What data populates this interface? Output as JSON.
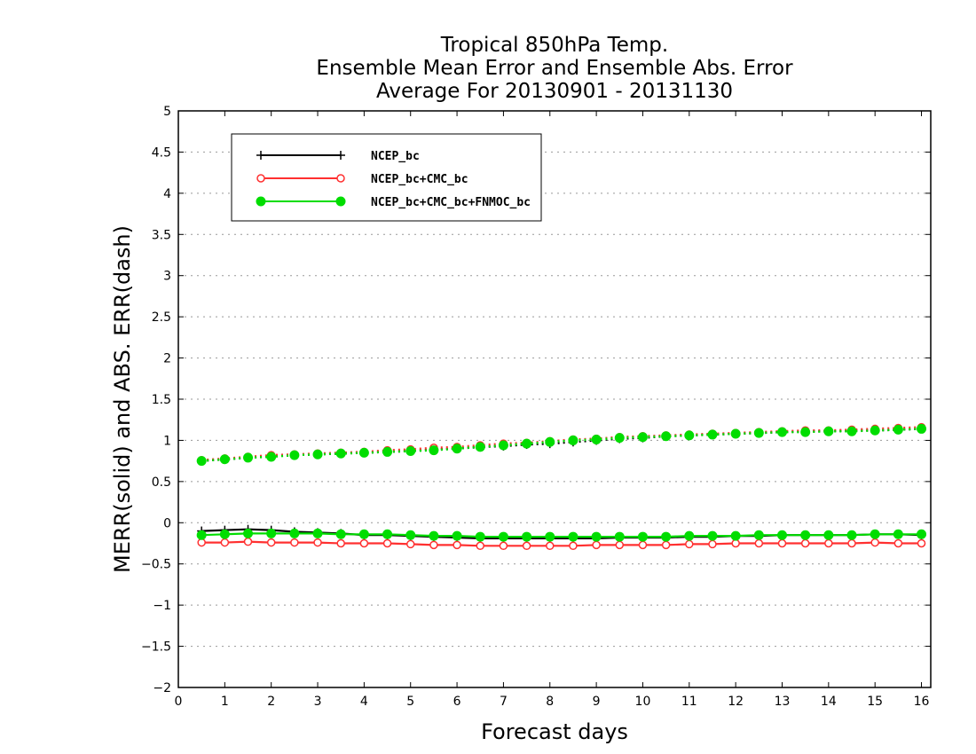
{
  "chart_data": {
    "type": "line",
    "title_lines": [
      "Tropical 850hPa Temp.",
      "Ensemble Mean Error and Ensemble Abs. Error",
      "Average For 20130901 - 20131130"
    ],
    "xlabel": "Forecast days",
    "ylabel": "MERR(solid) and ABS. ERR(dash)",
    "xlim": [
      0,
      16.2
    ],
    "ylim": [
      -2,
      5
    ],
    "x_ticks": [
      "0",
      "1",
      "2",
      "3",
      "4",
      "5",
      "6",
      "7",
      "8",
      "9",
      "10",
      "11",
      "12",
      "13",
      "14",
      "15",
      "16"
    ],
    "y_ticks": [
      "5",
      "4.5",
      "4",
      "3.5",
      "3",
      "2.5",
      "2",
      "1.5",
      "1",
      "0.5",
      "0",
      "-0.5",
      "-1",
      "-1.5",
      "-2"
    ],
    "y_tick_labels": [
      "5",
      "4.5",
      "4",
      "3.5",
      "3",
      "2.5",
      "2",
      "1.5",
      "1",
      "0.5",
      "0",
      "−0.5",
      "−1",
      "−1.5",
      "−2"
    ],
    "grid": "horizontal-dotted",
    "legend_position": "top-left",
    "x": [
      0.5,
      1,
      1.5,
      2,
      2.5,
      3,
      3.5,
      4,
      4.5,
      5,
      5.5,
      6,
      6.5,
      7,
      7.5,
      8,
      8.5,
      9,
      9.5,
      10,
      10.5,
      11,
      11.5,
      12,
      12.5,
      13,
      13.5,
      14,
      14.5,
      15,
      15.5,
      16
    ],
    "series": [
      {
        "name": "NCEP_bc",
        "color": "#000000",
        "marker": "plus",
        "merr": [
          -0.1,
          -0.09,
          -0.08,
          -0.09,
          -0.11,
          -0.12,
          -0.13,
          -0.15,
          -0.15,
          -0.16,
          -0.17,
          -0.18,
          -0.19,
          -0.19,
          -0.19,
          -0.19,
          -0.19,
          -0.19,
          -0.18,
          -0.18,
          -0.18,
          -0.17,
          -0.17,
          -0.16,
          -0.16,
          -0.15,
          -0.15,
          -0.15,
          -0.15,
          -0.14,
          -0.14,
          -0.15
        ],
        "abs_err": [
          0.75,
          0.77,
          0.79,
          0.81,
          0.82,
          0.83,
          0.84,
          0.85,
          0.86,
          0.87,
          0.89,
          0.9,
          0.92,
          0.93,
          0.95,
          0.96,
          0.98,
          1.0,
          1.02,
          1.03,
          1.05,
          1.06,
          1.07,
          1.08,
          1.09,
          1.1,
          1.11,
          1.11,
          1.12,
          1.12,
          1.13,
          1.14
        ]
      },
      {
        "name": "NCEP_bc+CMC_bc",
        "color": "#ff3030",
        "marker": "open-circle",
        "merr": [
          -0.24,
          -0.24,
          -0.23,
          -0.24,
          -0.24,
          -0.24,
          -0.25,
          -0.25,
          -0.25,
          -0.26,
          -0.27,
          -0.27,
          -0.28,
          -0.28,
          -0.28,
          -0.28,
          -0.28,
          -0.27,
          -0.27,
          -0.27,
          -0.27,
          -0.26,
          -0.26,
          -0.25,
          -0.25,
          -0.25,
          -0.25,
          -0.25,
          -0.25,
          -0.24,
          -0.25,
          -0.25
        ],
        "abs_err": [
          0.76,
          0.78,
          0.8,
          0.82,
          0.83,
          0.84,
          0.85,
          0.86,
          0.88,
          0.89,
          0.91,
          0.92,
          0.94,
          0.96,
          0.97,
          0.99,
          1.01,
          1.02,
          1.04,
          1.05,
          1.06,
          1.07,
          1.08,
          1.09,
          1.1,
          1.11,
          1.12,
          1.12,
          1.13,
          1.14,
          1.15,
          1.16
        ]
      },
      {
        "name": "NCEP_bc+CMC_bc+FNMOC_bc",
        "color": "#00dd00",
        "marker": "filled-circle",
        "merr": [
          -0.15,
          -0.14,
          -0.13,
          -0.13,
          -0.13,
          -0.13,
          -0.14,
          -0.14,
          -0.14,
          -0.15,
          -0.16,
          -0.16,
          -0.17,
          -0.17,
          -0.17,
          -0.17,
          -0.17,
          -0.17,
          -0.17,
          -0.17,
          -0.17,
          -0.16,
          -0.16,
          -0.16,
          -0.15,
          -0.15,
          -0.15,
          -0.15,
          -0.15,
          -0.14,
          -0.14,
          -0.14
        ],
        "abs_err": [
          0.75,
          0.77,
          0.79,
          0.8,
          0.82,
          0.83,
          0.84,
          0.85,
          0.86,
          0.87,
          0.88,
          0.9,
          0.92,
          0.94,
          0.96,
          0.98,
          1.0,
          1.01,
          1.03,
          1.04,
          1.05,
          1.06,
          1.07,
          1.08,
          1.09,
          1.1,
          1.1,
          1.11,
          1.11,
          1.12,
          1.13,
          1.14
        ]
      }
    ]
  }
}
